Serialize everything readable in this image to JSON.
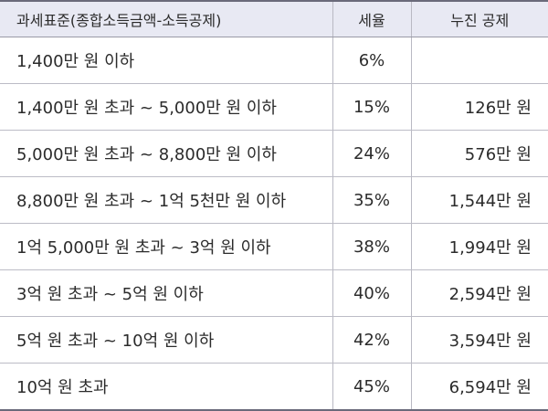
{
  "table": {
    "headers": [
      "과세표준(종합소득금액-소득공제)",
      "세율",
      "누진 공제"
    ],
    "rows": [
      {
        "range": "1,400만 원 이하",
        "rate": "6%",
        "deduction": ""
      },
      {
        "range": "1,400만 원 초과 ~ 5,000만 원 이하",
        "rate": "15%",
        "deduction": "126만 원"
      },
      {
        "range": "5,000만 원 초과 ~ 8,800만 원 이하",
        "rate": "24%",
        "deduction": "576만 원"
      },
      {
        "range": "8,800만 원 초과 ~ 1억 5천만 원 이하",
        "rate": "35%",
        "deduction": "1,544만 원"
      },
      {
        "range": "1억 5,000만 원 초과 ~ 3억 원 이하",
        "rate": "38%",
        "deduction": "1,994만 원"
      },
      {
        "range": "3억 원 초과 ~ 5억 원 이하",
        "rate": "40%",
        "deduction": "2,594만 원"
      },
      {
        "range": "5억 원 초과 ~ 10억 원 이하",
        "rate": "42%",
        "deduction": "3,594만 원"
      },
      {
        "range": "10억 원 초과",
        "rate": "45%",
        "deduction": "6,594만 원"
      }
    ]
  }
}
